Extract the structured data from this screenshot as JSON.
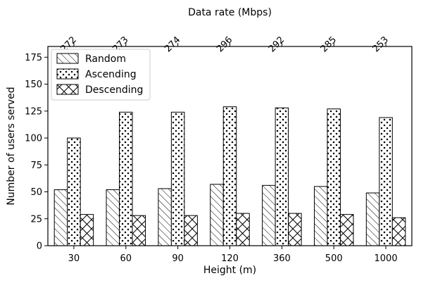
{
  "chart_data": {
    "type": "bar",
    "title": "",
    "xlabel": "Height (m)",
    "ylabel": "Number of users served",
    "top_axis_label": "Data rate (Mbps)",
    "categories": [
      "30",
      "60",
      "90",
      "120",
      "360",
      "500",
      "1000"
    ],
    "top_tick_labels": [
      "272",
      "273",
      "274",
      "296",
      "292",
      "285",
      "253"
    ],
    "series": [
      {
        "name": "Random",
        "pattern": "diagonal-hatch",
        "values": [
          52,
          52,
          53,
          57,
          56,
          55,
          49
        ]
      },
      {
        "name": "Ascending",
        "pattern": "dots",
        "values": [
          100,
          124,
          124,
          129,
          128,
          127,
          119
        ]
      },
      {
        "name": "Descending",
        "pattern": "cross-hatch",
        "values": [
          29,
          28,
          28,
          30,
          30,
          29,
          26
        ]
      }
    ],
    "ylim": [
      0,
      185
    ],
    "yticks": [
      0,
      25,
      50,
      75,
      100,
      125,
      150,
      175
    ],
    "grid": false,
    "legend_position": "top-left",
    "colors": {
      "bar_fill": "#ffffff",
      "bar_edge": "#000000"
    }
  }
}
